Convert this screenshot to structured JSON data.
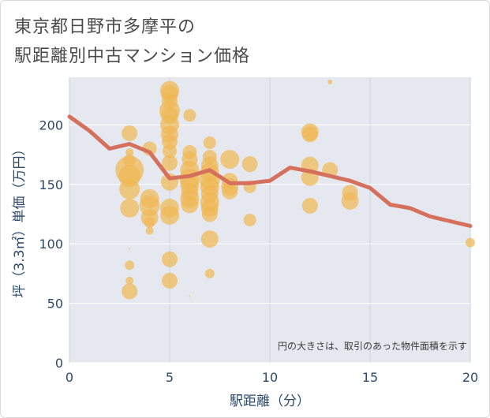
{
  "title_line1": "東京都日野市多摩平の",
  "title_line2": "駅距離別中古マンション価格",
  "chart_data": {
    "type": "scatter",
    "xlabel": "駅距離（分）",
    "ylabel": "坪（3.3㎡）単価（万円）",
    "xlim": [
      0,
      20
    ],
    "ylim": [
      0,
      240
    ],
    "xticks": [
      0,
      5,
      10,
      15,
      20
    ],
    "yticks": [
      0,
      50,
      100,
      150,
      200
    ],
    "grid": true,
    "note": "円の大きさは、取引のあった物件面積を示す",
    "colors": {
      "bubble": "#f0b955",
      "line": "#d4705c",
      "grid": "#c9d3e0",
      "plot_bg": "#e5e9ef"
    },
    "bubbles": [
      {
        "x": 3,
        "y": 193,
        "s": 10
      },
      {
        "x": 3,
        "y": 177,
        "s": 5
      },
      {
        "x": 3,
        "y": 170,
        "s": 8
      },
      {
        "x": 3,
        "y": 162,
        "s": 18
      },
      {
        "x": 3,
        "y": 157,
        "s": 14
      },
      {
        "x": 3,
        "y": 146,
        "s": 13
      },
      {
        "x": 3,
        "y": 130,
        "s": 12
      },
      {
        "x": 3,
        "y": 96,
        "s": 1
      },
      {
        "x": 3,
        "y": 82,
        "s": 6
      },
      {
        "x": 3,
        "y": 69,
        "s": 5
      },
      {
        "x": 3,
        "y": 60,
        "s": 10
      },
      {
        "x": 4,
        "y": 180,
        "s": 9
      },
      {
        "x": 4,
        "y": 138,
        "s": 12
      },
      {
        "x": 4,
        "y": 132,
        "s": 13
      },
      {
        "x": 4,
        "y": 122,
        "s": 11
      },
      {
        "x": 4,
        "y": 118,
        "s": 7
      },
      {
        "x": 4,
        "y": 111,
        "s": 5
      },
      {
        "x": 5,
        "y": 229,
        "s": 12
      },
      {
        "x": 5,
        "y": 226,
        "s": 11
      },
      {
        "x": 5,
        "y": 220,
        "s": 10
      },
      {
        "x": 5,
        "y": 212,
        "s": 13
      },
      {
        "x": 5,
        "y": 208,
        "s": 11
      },
      {
        "x": 5,
        "y": 200,
        "s": 12
      },
      {
        "x": 5,
        "y": 192,
        "s": 11
      },
      {
        "x": 5,
        "y": 186,
        "s": 10
      },
      {
        "x": 5,
        "y": 178,
        "s": 9
      },
      {
        "x": 5,
        "y": 168,
        "s": 10
      },
      {
        "x": 5,
        "y": 152,
        "s": 11
      },
      {
        "x": 5,
        "y": 130,
        "s": 12
      },
      {
        "x": 5,
        "y": 124,
        "s": 12
      },
      {
        "x": 5,
        "y": 87,
        "s": 10
      },
      {
        "x": 5,
        "y": 69,
        "s": 10
      },
      {
        "x": 6,
        "y": 208,
        "s": 8
      },
      {
        "x": 6,
        "y": 177,
        "s": 9
      },
      {
        "x": 6,
        "y": 171,
        "s": 10
      },
      {
        "x": 6,
        "y": 162,
        "s": 12
      },
      {
        "x": 6,
        "y": 155,
        "s": 13
      },
      {
        "x": 6,
        "y": 150,
        "s": 12
      },
      {
        "x": 6,
        "y": 144,
        "s": 11
      },
      {
        "x": 6,
        "y": 138,
        "s": 12
      },
      {
        "x": 6,
        "y": 133,
        "s": 11
      },
      {
        "x": 6,
        "y": 56,
        "s": 1
      },
      {
        "x": 7,
        "y": 185,
        "s": 8
      },
      {
        "x": 7,
        "y": 173,
        "s": 9
      },
      {
        "x": 7,
        "y": 166,
        "s": 11
      },
      {
        "x": 7,
        "y": 160,
        "s": 12
      },
      {
        "x": 7,
        "y": 154,
        "s": 13
      },
      {
        "x": 7,
        "y": 148,
        "s": 12
      },
      {
        "x": 7,
        "y": 142,
        "s": 11
      },
      {
        "x": 7,
        "y": 135,
        "s": 12
      },
      {
        "x": 7,
        "y": 130,
        "s": 11
      },
      {
        "x": 7,
        "y": 125,
        "s": 10
      },
      {
        "x": 7,
        "y": 104,
        "s": 11
      },
      {
        "x": 7,
        "y": 75,
        "s": 6
      },
      {
        "x": 8,
        "y": 171,
        "s": 12
      },
      {
        "x": 8,
        "y": 153,
        "s": 10
      },
      {
        "x": 8,
        "y": 148,
        "s": 11
      },
      {
        "x": 8,
        "y": 144,
        "s": 10
      },
      {
        "x": 9,
        "y": 167,
        "s": 10
      },
      {
        "x": 9,
        "y": 148,
        "s": 8
      },
      {
        "x": 9,
        "y": 120,
        "s": 8
      },
      {
        "x": 12,
        "y": 194,
        "s": 11
      },
      {
        "x": 12,
        "y": 192,
        "s": 10
      },
      {
        "x": 12,
        "y": 166,
        "s": 11
      },
      {
        "x": 12,
        "y": 156,
        "s": 11
      },
      {
        "x": 12,
        "y": 132,
        "s": 10
      },
      {
        "x": 13,
        "y": 236,
        "s": 3
      },
      {
        "x": 13,
        "y": 162,
        "s": 10
      },
      {
        "x": 14,
        "y": 143,
        "s": 10
      },
      {
        "x": 14,
        "y": 136,
        "s": 11
      },
      {
        "x": 20,
        "y": 101,
        "s": 6
      }
    ],
    "line": {
      "x": [
        0,
        1,
        2,
        3,
        4,
        5,
        6,
        7,
        8,
        9,
        10,
        11,
        12,
        13,
        14,
        15,
        16,
        17,
        18,
        19,
        20
      ],
      "y": [
        207,
        195,
        180,
        184,
        177,
        155,
        157,
        162,
        151,
        151,
        153,
        164,
        161,
        157,
        153,
        147,
        133,
        130,
        123,
        119,
        115
      ]
    }
  }
}
